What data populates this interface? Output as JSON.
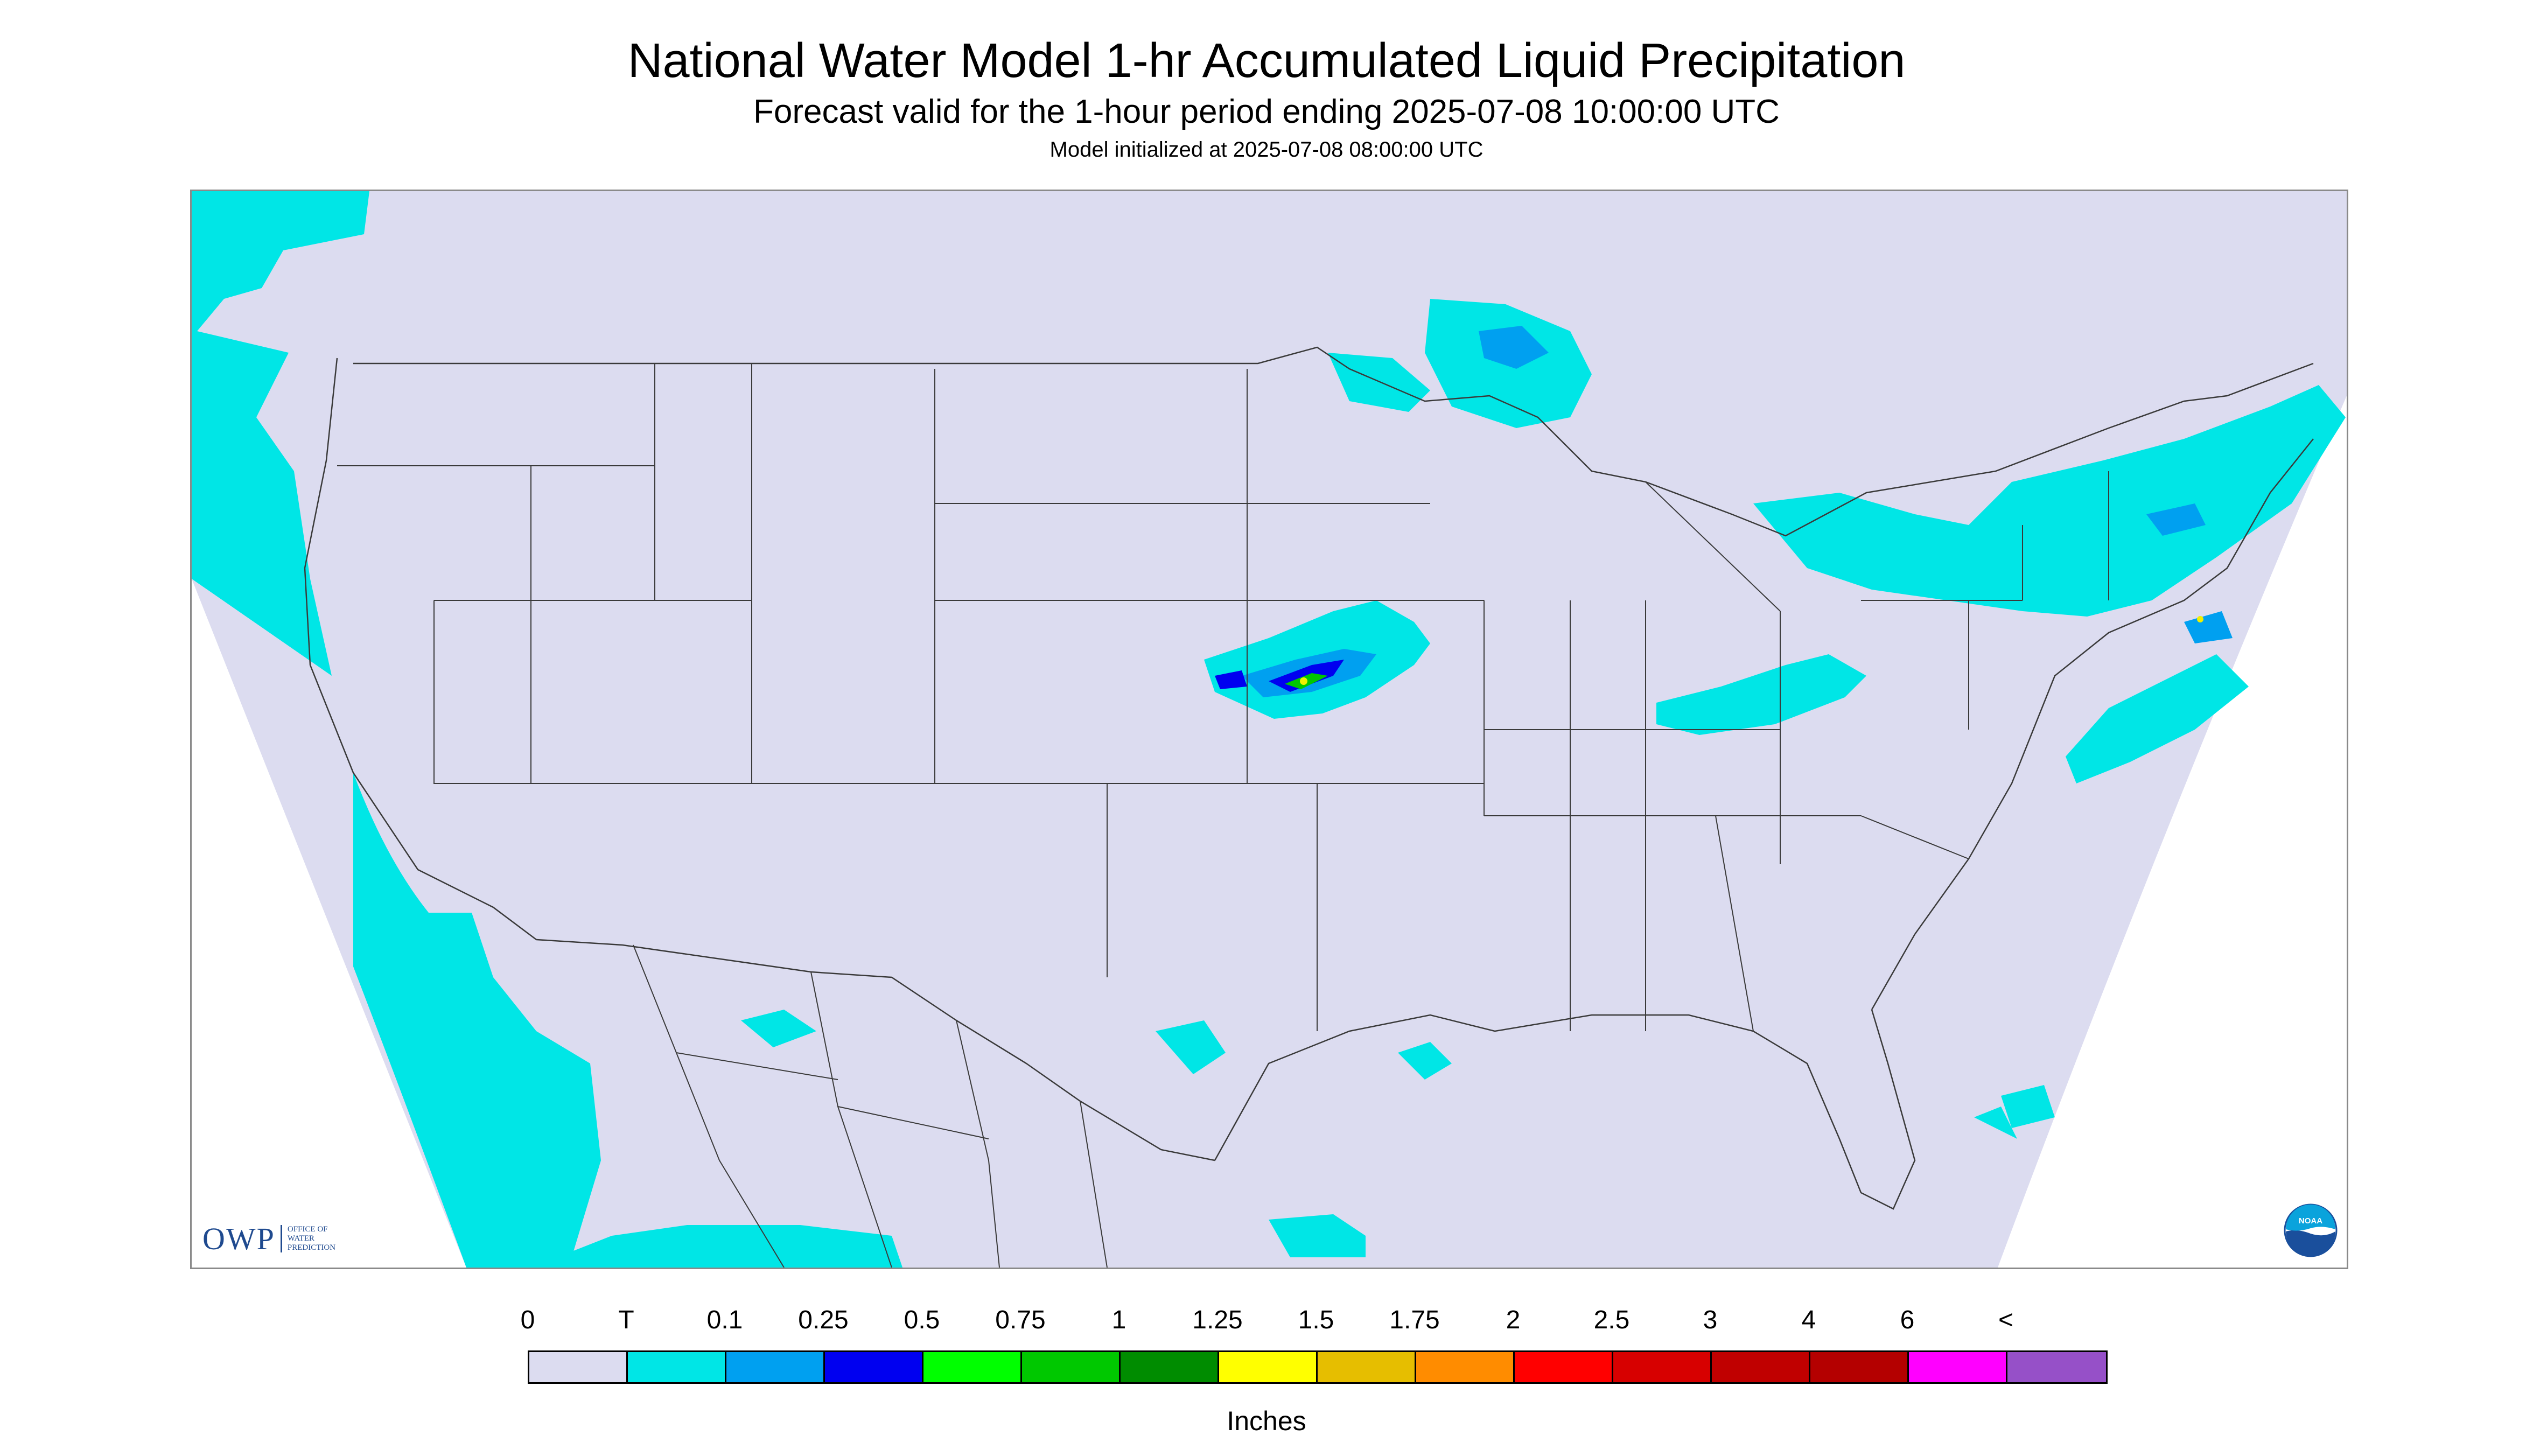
{
  "header": {
    "title": "National Water Model 1-hr Accumulated Liquid Precipitation",
    "subtitle": "Forecast valid for the 1-hour period ending 2025-07-08 10:00:00 UTC",
    "init_line": "Model initialized at 2025-07-08 08:00:00 UTC"
  },
  "map": {
    "region": "CONUS",
    "background_color": "#dcdcf0",
    "outside_domain_color": "#ffffff",
    "boundary_color": "#3a3a3a",
    "precip_colors": {
      "trace": "#00e6e6",
      "light": "#00a0f0",
      "moderate": "#0000f0",
      "heavy": "#00c800",
      "very_heavy": "#f0f000"
    },
    "precip_areas": [
      {
        "name": "pacific-northwest-coast",
        "category": "trace"
      },
      {
        "name": "pacific-offshore",
        "category": "trace"
      },
      {
        "name": "upper-great-lakes",
        "category": "trace"
      },
      {
        "name": "nebraska-iowa-system",
        "category": "trace"
      },
      {
        "name": "ohio-valley",
        "category": "trace"
      },
      {
        "name": "northeast",
        "category": "trace"
      },
      {
        "name": "atlantic-offshore",
        "category": "trace"
      },
      {
        "name": "gulf-coast",
        "category": "trace"
      },
      {
        "name": "mexico-south",
        "category": "trace"
      }
    ]
  },
  "logos": {
    "owp_mark": "OWP",
    "owp_lines": [
      "OFFICE OF",
      "WATER",
      "PREDICTION"
    ],
    "noaa_text": "NOAA"
  },
  "legend": {
    "ticks": [
      "0",
      "T",
      "0.1",
      "0.25",
      "0.5",
      "0.75",
      "1",
      "1.25",
      "1.5",
      "1.75",
      "2",
      "2.5",
      "3",
      "4",
      "6",
      "<"
    ],
    "colors": [
      "#dcdcf0",
      "#00e6e6",
      "#00a0f0",
      "#0000f0",
      "#00ff00",
      "#00c800",
      "#008c00",
      "#ffff00",
      "#e6be00",
      "#ff8c00",
      "#ff0000",
      "#d70000",
      "#c00000",
      "#b40000",
      "#ff00ff",
      "#9650c8"
    ],
    "units": "Inches"
  }
}
